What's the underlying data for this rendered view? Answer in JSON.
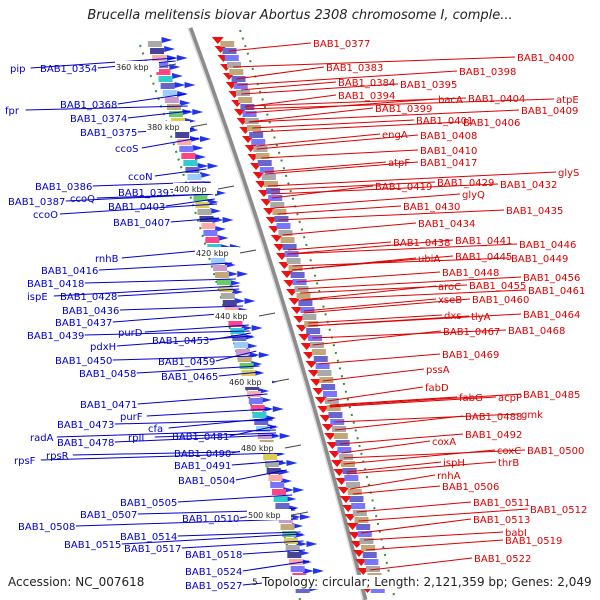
{
  "title": "Brucella melitensis biovar Abortus 2308 chromosome I, comple...",
  "footer": {
    "accession": "Accession: NC_007618",
    "summary": "Topology: circular; Length: 2,121,359 bp; Genes: 2,049"
  },
  "colors": {
    "left_labels": "#0000cc",
    "right_labels": "#dd0000",
    "backbone": "#8c8c8c",
    "tick_marks": "#3a8a3a"
  },
  "scale_labels": [
    "360 kbp",
    "380 kbp",
    "400 kbp",
    "420 kbp",
    "440 kbp",
    "460 kbp",
    "480 kbp",
    "500 kbp"
  ],
  "left_labels": [
    "pip",
    "BAB1_0354",
    "fpr",
    "BAB1_0368",
    "BAB1_0374",
    "BAB1_0375",
    "ccoS",
    "ccoN",
    "BAB1_0386",
    "BAB1_0393",
    "BAB1_0387",
    "ccoQ",
    "ccoO",
    "BAB1_0403",
    "BAB1_0407",
    "rnhB",
    "BAB1_0416",
    "BAB1_0418",
    "ispE",
    "BAB1_0428",
    "BAB1_0436",
    "BAB1_0437",
    "purD",
    "BAB1_0439",
    "pdxH",
    "BAB1_0453",
    "BAB1_0450",
    "BAB1_0459",
    "BAB1_0458",
    "BAB1_0465",
    "BAB1_0471",
    "purF",
    "BAB1_0473",
    "cfa",
    "radA",
    "rpII",
    "BAB1_0481",
    "BAB1_0478",
    "rpsR",
    "BAB1_0490",
    "rpsF",
    "BAB1_0491",
    "BAB1_0504",
    "BAB1_0505",
    "BAB1_0507",
    "BAB1_0510",
    "BAB1_0508",
    "BAB1_0514",
    "BAB1_0515",
    "BAB1_0517",
    "BAB1_0518",
    "BAB1_0524",
    "BAB1_0527"
  ],
  "right_labels": [
    "BAB1_0377",
    "BAB1_0400",
    "BAB1_0383",
    "BAB1_0398",
    "BAB1_0384",
    "BAB1_0395",
    "BAB1_0394",
    "bacA",
    "BAB1_0404",
    "atpE",
    "BAB1_0409",
    "BAB1_0399",
    "BAB1_0401",
    "BAB1_0406",
    "engA",
    "BAB1_0408",
    "BAB1_0410",
    "atpF",
    "BAB1_0417",
    "glyS",
    "BAB1_0429",
    "BAB1_0432",
    "BAB1_0419",
    "glyQ",
    "BAB1_0430",
    "BAB1_0435",
    "BAB1_0434",
    "BAB1_0441",
    "BAB1_0438",
    "BAB1_0446",
    "ubiA",
    "BAB1_0445",
    "BAB1_0449",
    "BAB1_0448",
    "BAB1_0456",
    "aroC",
    "BAB1_0455",
    "BAB1_0461",
    "xseB",
    "BAB1_0460",
    "dxs",
    "tlyA",
    "BAB1_0464",
    "BAB1_0467",
    "BAB1_0468",
    "BAB1_0469",
    "pssA",
    "fabD",
    "fabG",
    "acpP",
    "BAB1_0485",
    "BAB1_0488",
    "gmk",
    "BAB1_0492",
    "coxA",
    "coxC",
    "BAB1_0500",
    "ispH",
    "thrB",
    "rnhA",
    "BAB1_0506",
    "BAB1_0511",
    "BAB1_0512",
    "BAB1_0513",
    "babI",
    "BAB1_0519",
    "BAB1_0522"
  ],
  "footer_overlap_label": "5"
}
